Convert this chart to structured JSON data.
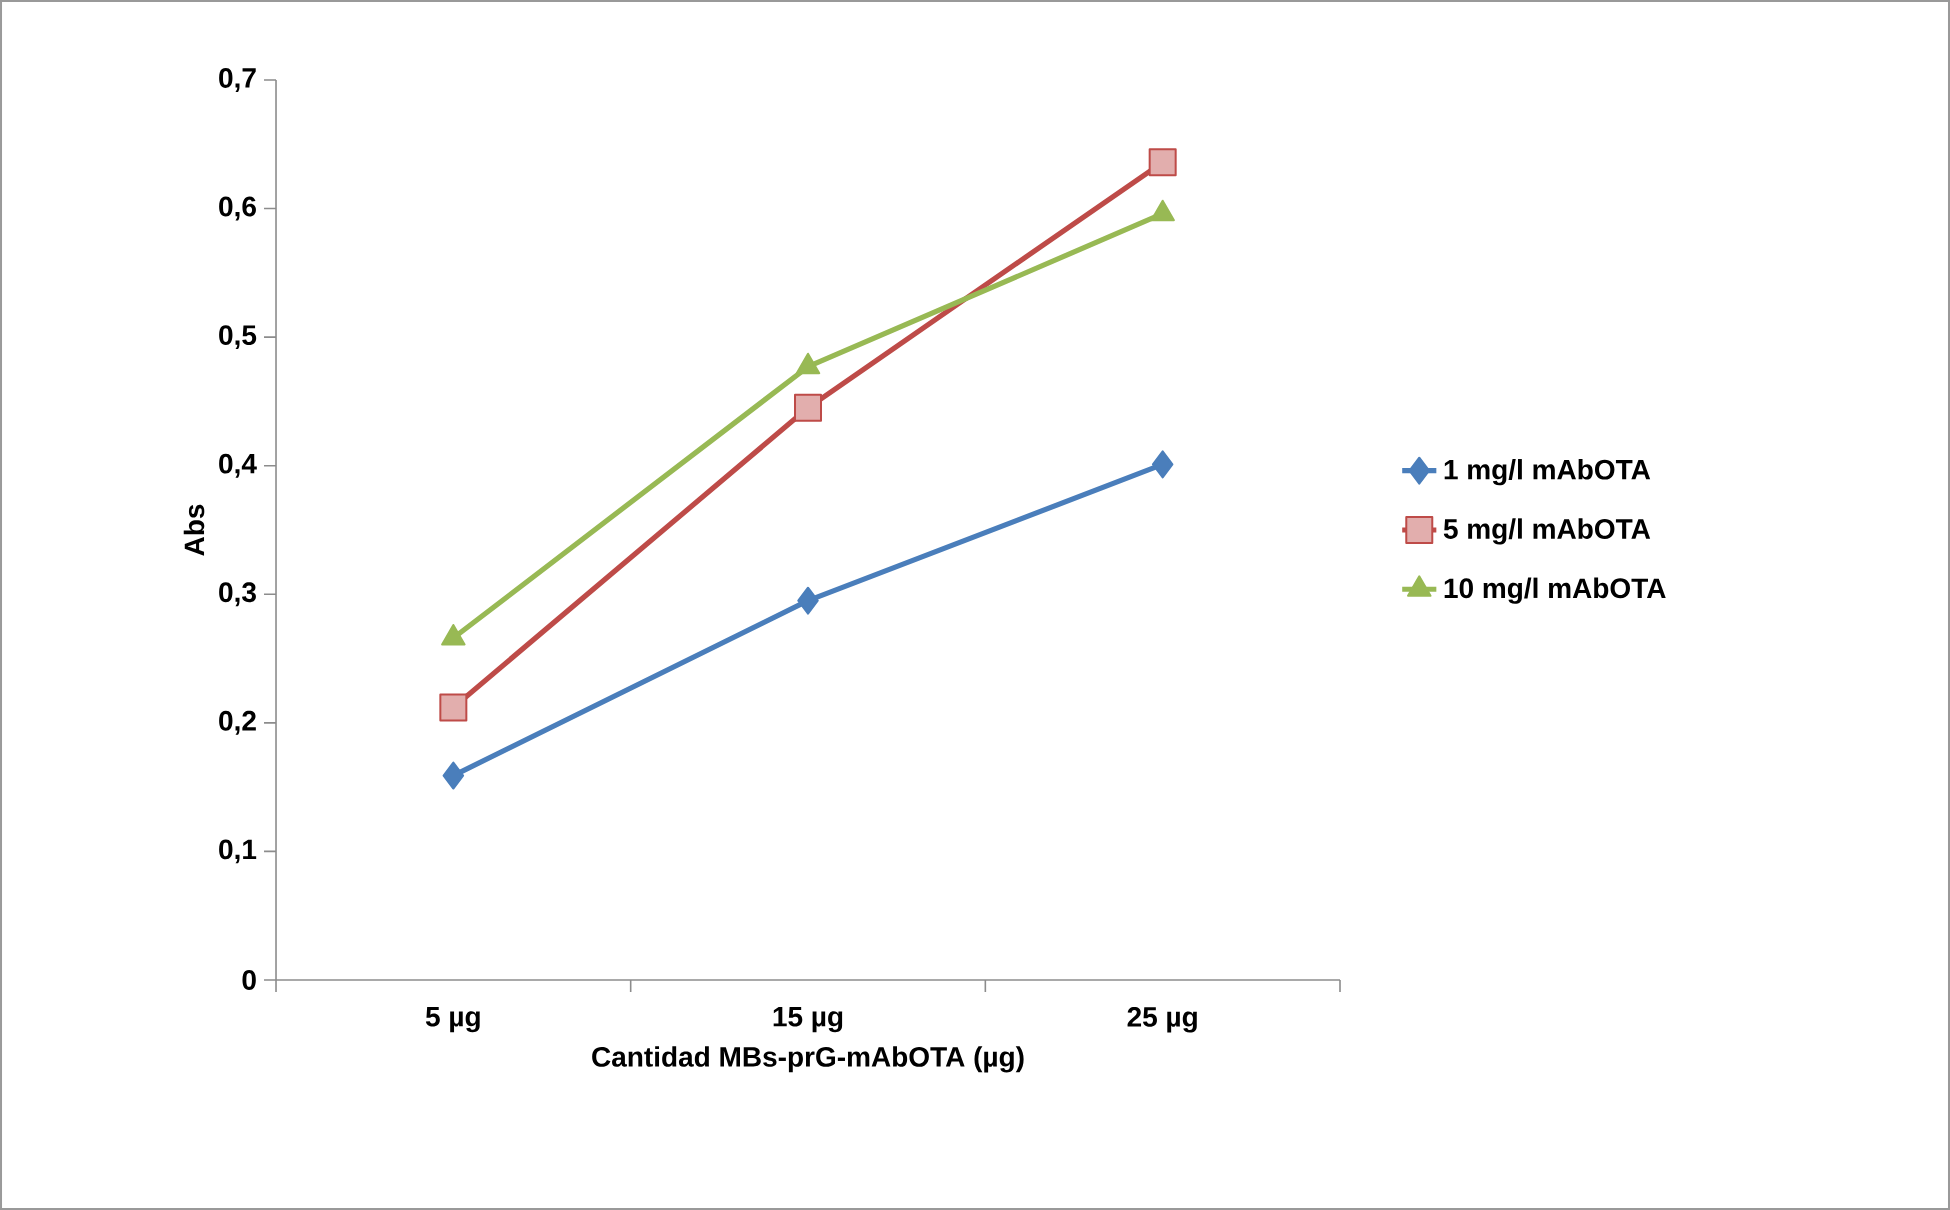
{
  "chart_data": {
    "type": "line",
    "xlabel": "Cantidad MBs-prG-mAbOTA (µg)",
    "ylabel": "Abs",
    "categories": [
      "5 µg",
      "15 µg",
      "25 µg"
    ],
    "series": [
      {
        "name": "1 mg/l mAbOTA",
        "color": "#4a7ebb",
        "marker": "diamond",
        "values": [
          0.159,
          0.295,
          0.401
        ]
      },
      {
        "name": "5 mg/l mAbOTA",
        "color": "#be4b48",
        "marker": "square",
        "values": [
          0.212,
          0.445,
          0.636
        ]
      },
      {
        "name": "10 mg/l mAbOTA",
        "color": "#98b954",
        "marker": "triangle",
        "values": [
          0.266,
          0.477,
          0.596
        ]
      }
    ],
    "ylim": [
      0,
      0.7
    ],
    "yticks": [
      0,
      {
        "value": 0.1,
        "label": "0,1"
      },
      {
        "value": 0.2,
        "label": "0,2"
      },
      {
        "value": 0.3,
        "label": "0,3"
      },
      {
        "value": 0.4,
        "label": "0,4"
      },
      {
        "value": 0.5,
        "label": "0,5"
      },
      {
        "value": 0.6,
        "label": "0,6"
      },
      {
        "value": 0.7,
        "label": "0,7"
      }
    ],
    "grid": false,
    "legend": "right",
    "line_style": "solid"
  }
}
